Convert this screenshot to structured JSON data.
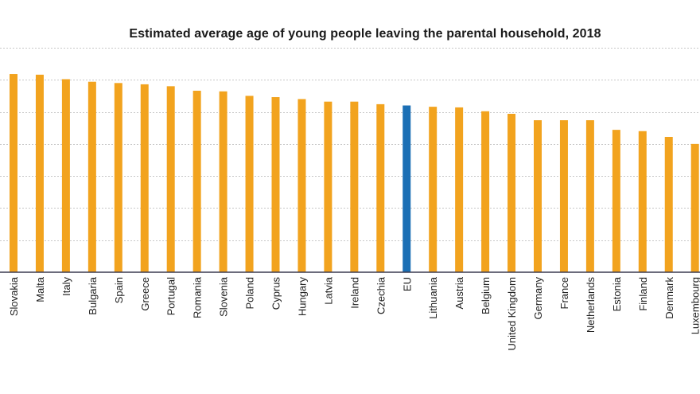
{
  "chart_data": {
    "type": "bar",
    "title": "Estimated average age of young people leaving the parental household, 2018",
    "xlabel": "",
    "ylabel": "",
    "ylim": [
      0,
      35
    ],
    "yticks": [
      0,
      5,
      10,
      15,
      20,
      25,
      30,
      35
    ],
    "grid": true,
    "legend": "none",
    "categories": [
      "Slovakia",
      "Malta",
      "Italy",
      "Bulgaria",
      "Spain",
      "Greece",
      "Portugal",
      "Romania",
      "Slovenia",
      "Poland",
      "Cyprus",
      "Hungary",
      "Latvia",
      "Ireland",
      "Czechia",
      "EU",
      "Lithuania",
      "Austria",
      "Belgium",
      "United Kingdom",
      "Germany",
      "France",
      "Netherlands",
      "Estonia",
      "Finland",
      "Denmark",
      "Luxembourg"
    ],
    "values": [
      30.9,
      30.8,
      30.1,
      29.7,
      29.5,
      29.3,
      29.0,
      28.3,
      28.2,
      27.5,
      27.3,
      27.0,
      26.6,
      26.6,
      26.2,
      26.0,
      25.8,
      25.7,
      25.1,
      24.7,
      23.7,
      23.7,
      23.7,
      22.2,
      22.0,
      21.1,
      20.0
    ],
    "highlight": [
      "EU"
    ],
    "colors": {
      "default": "#F2A31E",
      "highlight": "#1B6FB5"
    }
  }
}
